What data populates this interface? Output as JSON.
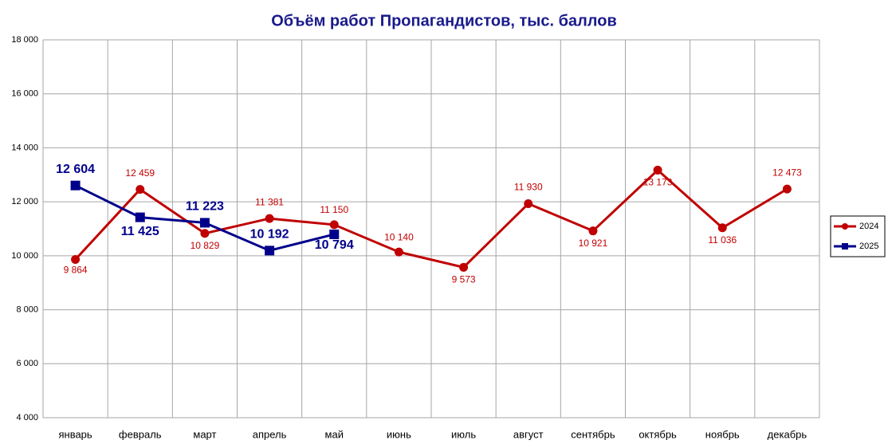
{
  "chart_data": {
    "type": "line",
    "title": "Объём работ Пропагандистов, тыс. баллов",
    "categories": [
      "январь",
      "февраль",
      "март",
      "апрель",
      "май",
      "июнь",
      "июль",
      "август",
      "сентябрь",
      "октябрь",
      "ноябрь",
      "декабрь"
    ],
    "series": [
      {
        "name": "2024",
        "color": "#c00000",
        "marker": "circle",
        "values": [
          9864,
          12459,
          10829,
          11381,
          11150,
          10140,
          9573,
          11930,
          10921,
          13173,
          11036,
          12473
        ],
        "value_labels": [
          "9 864",
          "12 459",
          "10 829",
          "11 381",
          "11 150",
          "10 140",
          "9 573",
          "11 930",
          "10 921",
          "13 173",
          "11 036",
          "12 473"
        ]
      },
      {
        "name": "2025",
        "color": "#00008b",
        "marker": "square",
        "values": [
          12604,
          11425,
          11223,
          10192,
          10794,
          null,
          null,
          null,
          null,
          null,
          null,
          null
        ],
        "value_labels": [
          "12 604",
          "11 425",
          "11 223",
          "10 192",
          "10 794",
          null,
          null,
          null,
          null,
          null,
          null,
          null
        ]
      }
    ],
    "ylim": [
      4000,
      18000
    ],
    "yticks": [
      {
        "value": 4000,
        "label": "4 000"
      },
      {
        "value": 6000,
        "label": "6 000"
      },
      {
        "value": 8000,
        "label": "8 000"
      },
      {
        "value": 10000,
        "label": "10 000"
      },
      {
        "value": 12000,
        "label": "12 000"
      },
      {
        "value": 14000,
        "label": "14 000"
      },
      {
        "value": 16000,
        "label": "16 000"
      },
      {
        "value": 18000,
        "label": "18 000"
      }
    ],
    "grid": true,
    "legend": "right"
  }
}
